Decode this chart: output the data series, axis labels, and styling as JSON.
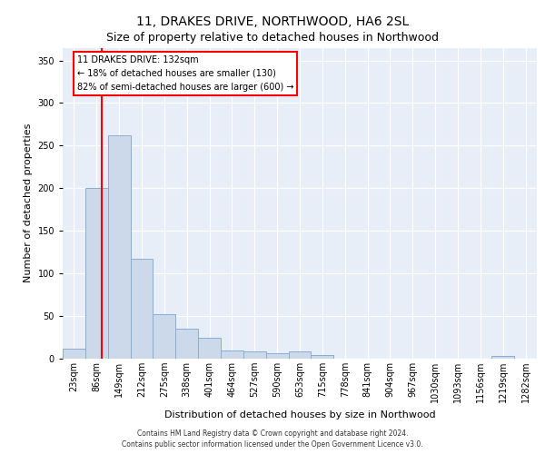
{
  "title1": "11, DRAKES DRIVE, NORTHWOOD, HA6 2SL",
  "title2": "Size of property relative to detached houses in Northwood",
  "xlabel": "Distribution of detached houses by size in Northwood",
  "ylabel": "Number of detached properties",
  "footer1": "Contains HM Land Registry data © Crown copyright and database right 2024.",
  "footer2": "Contains public sector information licensed under the Open Government Licence v3.0.",
  "bin_labels": [
    "23sqm",
    "86sqm",
    "149sqm",
    "212sqm",
    "275sqm",
    "338sqm",
    "401sqm",
    "464sqm",
    "527sqm",
    "590sqm",
    "653sqm",
    "715sqm",
    "778sqm",
    "841sqm",
    "904sqm",
    "967sqm",
    "1030sqm",
    "1093sqm",
    "1156sqm",
    "1219sqm",
    "1282sqm"
  ],
  "values": [
    12,
    200,
    262,
    117,
    52,
    35,
    24,
    10,
    8,
    6,
    8,
    4,
    0,
    0,
    0,
    0,
    0,
    0,
    0,
    3,
    0
  ],
  "bar_color": "#ccd9eb",
  "bar_edge_color": "#8aaed0",
  "red_line_x": 1.7,
  "annotation_title": "11 DRAKES DRIVE: 132sqm",
  "annotation_line1": "← 18% of detached houses are smaller (130)",
  "annotation_line2": "82% of semi-detached houses are larger (600) →",
  "annotation_box_color": "white",
  "annotation_box_edge": "red",
  "red_line_color": "red",
  "ylim": [
    0,
    365
  ],
  "yticks": [
    0,
    50,
    100,
    150,
    200,
    250,
    300,
    350
  ],
  "plot_bg": "#e8eef8",
  "grid_color": "white",
  "title1_fontsize": 10,
  "title2_fontsize": 9,
  "ylabel_fontsize": 8,
  "xlabel_fontsize": 8
}
